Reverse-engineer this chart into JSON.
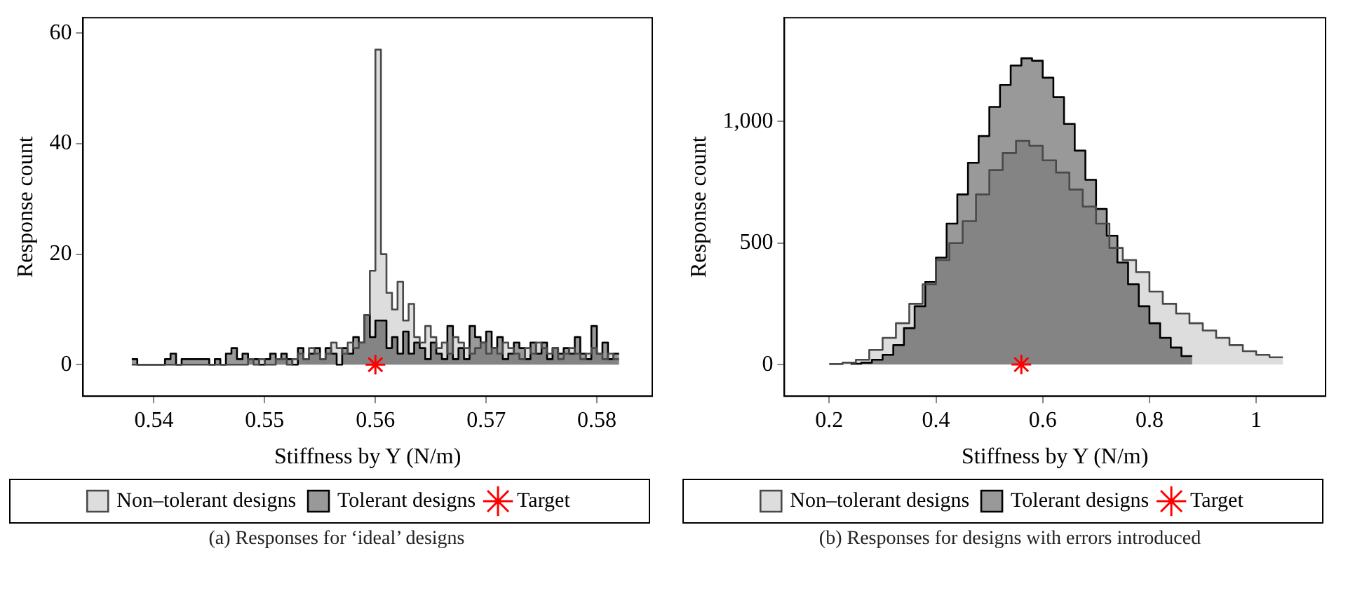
{
  "chart_data": [
    {
      "type": "histogram",
      "xlabel": "Stiffness by Y (N/m)",
      "ylabel": "Response count",
      "annotations": [
        "(a) Responses for ‘ideal’ designs"
      ],
      "bins": [
        0.538,
        0.5385,
        0.539,
        0.5395,
        0.54,
        0.5405,
        0.541,
        0.5415,
        0.542,
        0.5425,
        0.543,
        0.5435,
        0.544,
        0.5445,
        0.545,
        0.5455,
        0.546,
        0.5465,
        0.547,
        0.5475,
        0.548,
        0.5485,
        0.549,
        0.5495,
        0.55,
        0.5505,
        0.551,
        0.5515,
        0.552,
        0.5525,
        0.553,
        0.5535,
        0.554,
        0.5545,
        0.555,
        0.5555,
        0.556,
        0.5565,
        0.557,
        0.5575,
        0.558,
        0.5585,
        0.559,
        0.5595,
        0.56,
        0.5605,
        0.561,
        0.5615,
        0.562,
        0.5625,
        0.563,
        0.5635,
        0.564,
        0.5645,
        0.565,
        0.5655,
        0.566,
        0.5665,
        0.567,
        0.5675,
        0.568,
        0.5685,
        0.569,
        0.5695,
        0.57,
        0.5705,
        0.571,
        0.5715,
        0.572,
        0.5725,
        0.573,
        0.5735,
        0.574,
        0.5745,
        0.575,
        0.5755,
        0.576,
        0.5765,
        0.577,
        0.5775,
        0.578,
        0.5785,
        0.579,
        0.5795,
        0.58,
        0.5805,
        0.581,
        0.5815,
        0.582
      ],
      "series": [
        {
          "name": "Non–tolerant designs",
          "color": "#dddddd",
          "values": [
            0,
            0,
            0,
            0,
            0,
            0,
            0,
            0,
            0,
            0,
            0,
            0,
            0,
            0,
            0,
            0,
            0,
            0,
            0,
            0,
            0,
            1,
            0,
            1,
            0,
            0,
            1,
            1,
            0,
            1,
            2,
            1,
            3,
            2,
            1,
            2,
            4,
            3,
            2,
            4,
            3,
            4,
            9,
            17,
            57,
            20,
            13,
            10,
            15,
            8,
            11,
            5,
            4,
            7,
            5,
            3,
            4,
            2,
            5,
            4,
            3,
            2,
            3,
            4,
            2,
            3,
            2,
            4,
            3,
            2,
            1,
            3,
            2,
            4,
            3,
            2,
            3,
            1,
            2,
            3,
            2,
            1,
            2,
            3,
            2,
            1,
            2,
            1
          ]
        },
        {
          "name": "Tolerant designs",
          "color": "#999999",
          "values": [
            1,
            0,
            0,
            0,
            0,
            0,
            1,
            2,
            0,
            1,
            1,
            1,
            1,
            1,
            0,
            1,
            0,
            2,
            3,
            1,
            2,
            1,
            1,
            0,
            1,
            2,
            1,
            2,
            1,
            0,
            3,
            1,
            2,
            3,
            1,
            3,
            2,
            0,
            3,
            2,
            5,
            4,
            9,
            5,
            8,
            8,
            3,
            5,
            2,
            6,
            2,
            4,
            3,
            1,
            4,
            2,
            1,
            7,
            1,
            3,
            1,
            7,
            5,
            4,
            6,
            3,
            5,
            1,
            2,
            4,
            3,
            1,
            4,
            2,
            4,
            1,
            3,
            2,
            3,
            2,
            5,
            2,
            1,
            7,
            2,
            4,
            1,
            2
          ]
        },
        {
          "name": "Target",
          "type": "scatter",
          "marker": "cross",
          "color": "#ff0000",
          "x": [
            0.56
          ],
          "values": [
            0
          ]
        }
      ],
      "xlim": [
        0.5336,
        0.585
      ],
      "xticks": [
        0.54,
        0.55,
        0.56,
        0.57,
        0.58
      ],
      "ylim": [
        -5.7,
        62.8
      ],
      "yticks": [
        0,
        20,
        40,
        60
      ],
      "grid": false,
      "legend": "bottom"
    },
    {
      "type": "histogram",
      "xlabel": "Stiffness by Y (N/m)",
      "ylabel": "Response count",
      "annotations": [
        "(b) Responses for designs with errors introduced"
      ],
      "bins": [
        0.2,
        0.225,
        0.25,
        0.275,
        0.3,
        0.325,
        0.35,
        0.375,
        0.4,
        0.425,
        0.45,
        0.475,
        0.5,
        0.525,
        0.55,
        0.575,
        0.6,
        0.625,
        0.65,
        0.675,
        0.7,
        0.725,
        0.75,
        0.775,
        0.8,
        0.825,
        0.85,
        0.875,
        0.9,
        0.925,
        0.95,
        0.975,
        1,
        1.025,
        1.05
      ],
      "series": [
        {
          "name": "Non–tolerant designs",
          "color": "#dddddd",
          "values": [
            2,
            8,
            20,
            60,
            110,
            170,
            250,
            330,
            430,
            500,
            590,
            700,
            800,
            870,
            920,
            900,
            840,
            790,
            720,
            650,
            580,
            480,
            430,
            380,
            300,
            250,
            210,
            170,
            140,
            110,
            80,
            55,
            40,
            30
          ]
        },
        {
          "name": "Tolerant designs",
          "color": "#999999",
          "bins": [
            0.24,
            0.26,
            0.28,
            0.3,
            0.32,
            0.34,
            0.36,
            0.38,
            0.4,
            0.42,
            0.44,
            0.46,
            0.48,
            0.5,
            0.52,
            0.54,
            0.56,
            0.58,
            0.6,
            0.62,
            0.64,
            0.66,
            0.68,
            0.7,
            0.72,
            0.74,
            0.76,
            0.78,
            0.8,
            0.82,
            0.84,
            0.86,
            0.88
          ],
          "values": [
            3,
            8,
            20,
            40,
            80,
            150,
            240,
            340,
            440,
            580,
            700,
            830,
            940,
            1060,
            1150,
            1230,
            1260,
            1250,
            1180,
            1100,
            990,
            880,
            760,
            640,
            530,
            420,
            330,
            240,
            170,
            110,
            70,
            35
          ]
        },
        {
          "name": "Target",
          "type": "scatter",
          "marker": "cross",
          "color": "#ff0000",
          "x": [
            0.56
          ],
          "values": [
            0
          ]
        }
      ],
      "xlim": [
        0.116,
        1.13
      ],
      "xticks": [
        0.2,
        0.4,
        0.6,
        0.8,
        1
      ],
      "ylim": [
        -130,
        1427
      ],
      "yticks": [
        0,
        500,
        {
          "value": 1000,
          "label": "1,000"
        }
      ],
      "grid": false,
      "legend": "bottom"
    }
  ]
}
